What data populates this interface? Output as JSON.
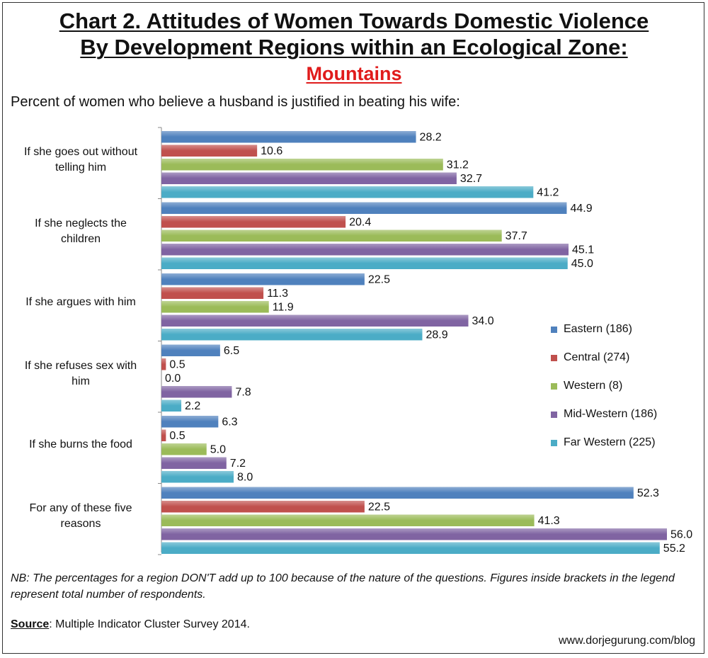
{
  "title_line1": "Chart 2. Attitudes of Women Towards Domestic Violence",
  "title_line2": "By Development Regions within an Ecological Zone:",
  "title_line3": "Mountains",
  "subtitle": "Percent of women who believe a husband is justified in beating his wife:",
  "note": "NB: The percentages for a region DON'T add up to 100 because of the nature of the questions. Figures inside brackets in the legend represent total number of respondents.",
  "source_label": "Source",
  "source_text": ": Multiple Indicator Cluster Survey 2014.",
  "website": "www.dorjegurung.com/blog",
  "chart_data": {
    "type": "bar",
    "orientation": "horizontal",
    "categories": [
      [
        "If she goes out without",
        "telling him"
      ],
      [
        "If she neglects the",
        "children"
      ],
      [
        "If she argues with him"
      ],
      [
        "If she refuses sex with",
        "him"
      ],
      [
        "If she burns the food"
      ],
      [
        "For any of these five",
        "reasons"
      ]
    ],
    "series": [
      {
        "name": "Eastern (186)",
        "color": "#4f81bd",
        "values": [
          28.2,
          44.9,
          22.5,
          6.5,
          6.3,
          52.3
        ]
      },
      {
        "name": "Central (274)",
        "color": "#c0504d",
        "values": [
          10.6,
          20.4,
          11.3,
          0.5,
          0.5,
          22.5
        ]
      },
      {
        "name": "Western (8)",
        "color": "#9bbb59",
        "values": [
          31.2,
          37.7,
          11.9,
          0.0,
          5.0,
          41.3
        ]
      },
      {
        "name": "Mid-Western (186)",
        "color": "#8064a2",
        "values": [
          32.7,
          45.1,
          34.0,
          7.8,
          7.2,
          56.0
        ]
      },
      {
        "name": "Far Western (225)",
        "color": "#4bacc6",
        "values": [
          41.2,
          45.0,
          28.9,
          2.2,
          8.0,
          55.2
        ]
      }
    ],
    "xlim": [
      0,
      60
    ],
    "grid": false,
    "legend": "right"
  }
}
